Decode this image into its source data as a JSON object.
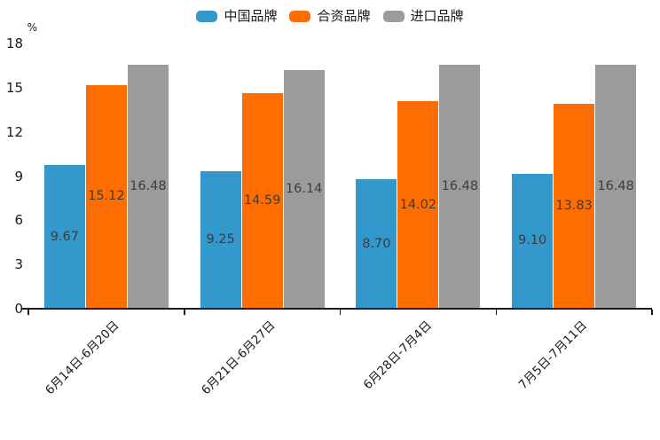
{
  "chart_data": {
    "type": "bar",
    "unit_label": "%",
    "categories": [
      "6月14日-6月20日",
      "6月21日-6月27日",
      "6月28日-7月4日",
      "7月5日-7月11日"
    ],
    "series": [
      {
        "name": "中国品牌",
        "color": "#3398CC",
        "values": [
          9.67,
          9.25,
          8.7,
          9.1
        ]
      },
      {
        "name": "合资品牌",
        "color": "#FF6D00",
        "values": [
          15.12,
          14.59,
          14.02,
          13.83
        ]
      },
      {
        "name": "进口品牌",
        "color": "#9B9B9B",
        "values": [
          16.48,
          16.14,
          16.48,
          16.48
        ]
      }
    ],
    "value_label_decimals": 2,
    "yticks": [
      0,
      3,
      6,
      9,
      12,
      15,
      18
    ],
    "ylim": [
      0,
      18
    ],
    "legend_position": "top",
    "grid": false,
    "colors": {
      "axis": "#1a1a1a",
      "tick_label": "#1a1a1a",
      "value_label": "#3d3d3d",
      "background": "#ffffff"
    }
  }
}
